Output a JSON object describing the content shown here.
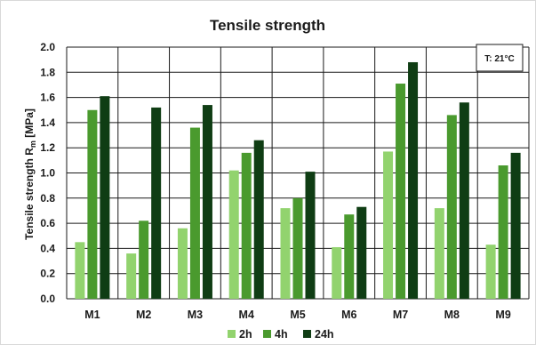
{
  "chart_data": {
    "type": "bar",
    "title": "Tensile strength",
    "ylabel_main": "Tensile strength R",
    "ylabel_sub": "m",
    "ylabel_unit": " [MPa]",
    "xlabel": "",
    "ylim": [
      0,
      2.0
    ],
    "yticks": [
      "0.0",
      "0.2",
      "0.4",
      "0.6",
      "0.8",
      "1.0",
      "1.2",
      "1.4",
      "1.6",
      "1.8",
      "2.0"
    ],
    "grid": true,
    "legend_position": "bottom",
    "annotation": "T: 21°C",
    "categories": [
      "M1",
      "M2",
      "M3",
      "M4",
      "M5",
      "M6",
      "M7",
      "M8",
      "M9"
    ],
    "series": [
      {
        "name": "2h",
        "color": "#92d36e",
        "values": [
          0.45,
          0.36,
          0.56,
          1.02,
          0.72,
          0.41,
          1.17,
          0.72,
          0.43
        ]
      },
      {
        "name": "4h",
        "color": "#4a9a2e",
        "values": [
          1.5,
          0.62,
          1.36,
          1.16,
          0.8,
          0.67,
          1.71,
          1.46,
          1.06
        ]
      },
      {
        "name": "24h",
        "color": "#0f3d14",
        "values": [
          1.61,
          1.52,
          1.54,
          1.26,
          1.01,
          0.73,
          1.88,
          1.56,
          1.16
        ]
      }
    ]
  }
}
